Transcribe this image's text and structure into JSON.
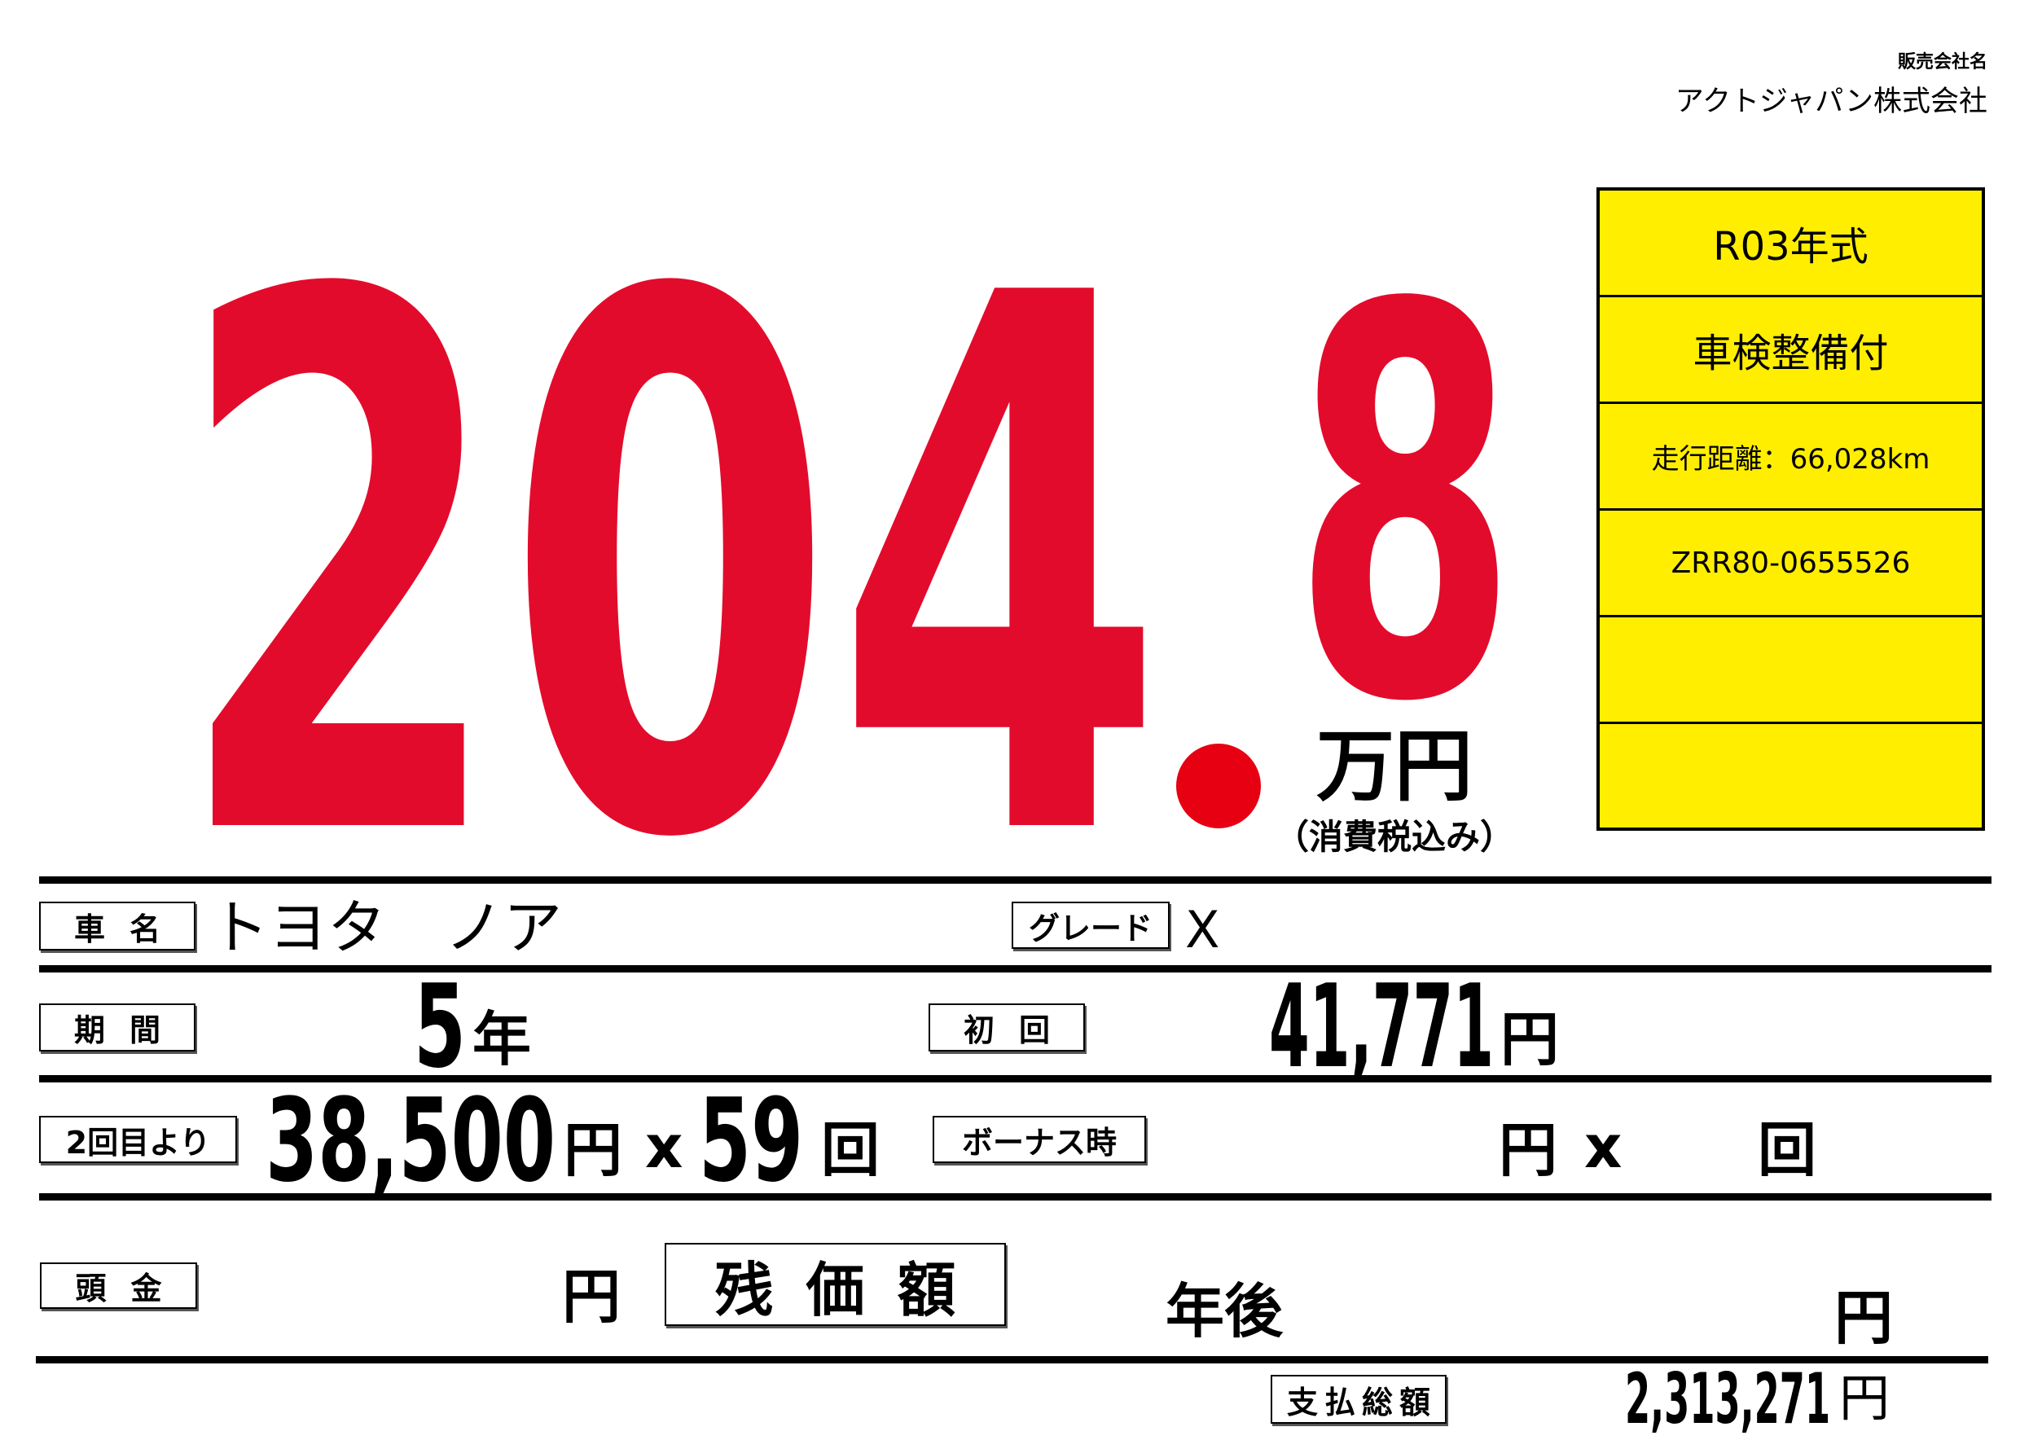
{
  "dealer": {
    "label": "販売会社名",
    "name": "アクトジャパン株式会社"
  },
  "price": {
    "integer": "204",
    "decimal": "8",
    "unit": "万円",
    "tax_note": "（消費税込み）",
    "color": "#E30B2C"
  },
  "spec_box": {
    "color": "#FFEE00",
    "rows": [
      "R03年式",
      "車検整備付",
      "走行距離：66,028km",
      "ZRR80-0655526",
      "",
      ""
    ]
  },
  "car": {
    "name_label": "車名",
    "name": "トヨタ　ノア",
    "grade_label": "グレード",
    "grade": "X"
  },
  "loan": {
    "period_label": "期間",
    "period_value": "5",
    "period_unit": "年",
    "first_label": "初回",
    "first_value": "41,771",
    "first_unit": "円",
    "from_second_label": "2回目より",
    "monthly_value": "38,500",
    "monthly_unit": "円",
    "times_sign": "x",
    "count_value": "59",
    "count_unit": "回",
    "bonus_label": "ボーナス時",
    "bonus_unit": "円",
    "bonus_times_sign": "x",
    "bonus_count_unit": "回",
    "down_label": "頭金",
    "down_unit": "円",
    "residual_label": "残価額",
    "residual_years_unit": "年後",
    "residual_unit": "円",
    "total_label": "支払総額",
    "total_value": "2,313,271",
    "total_unit": "円"
  }
}
